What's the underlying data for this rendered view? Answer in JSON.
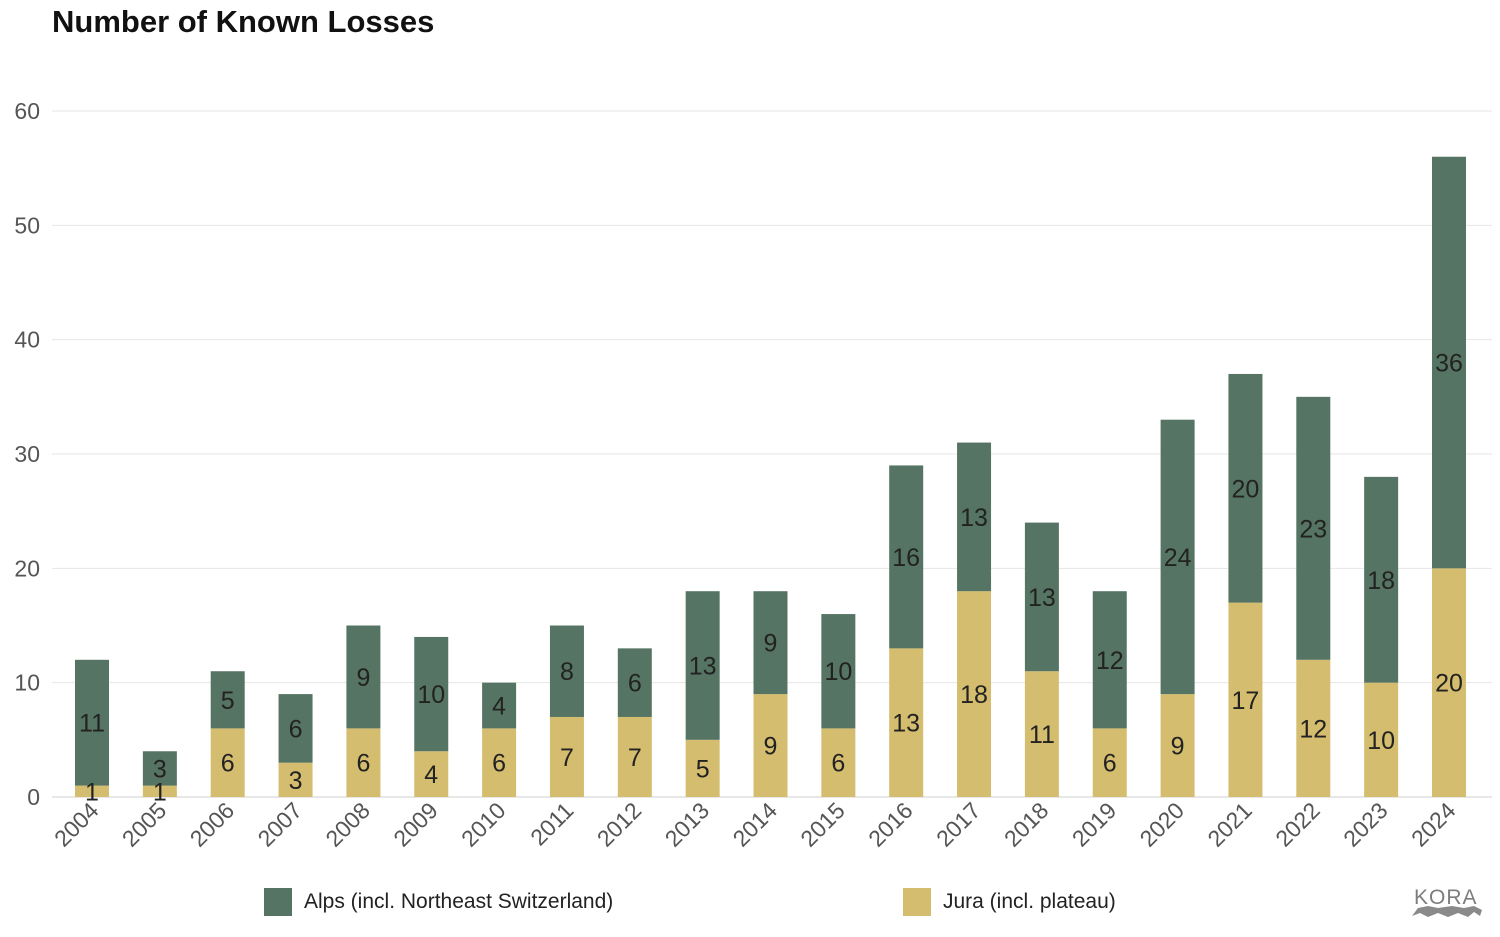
{
  "chart_data": {
    "type": "bar",
    "stacked": true,
    "title": "Number of Known Losses",
    "xlabel": "",
    "ylabel": "",
    "ylim": [
      0,
      60
    ],
    "yticks": [
      0,
      10,
      20,
      30,
      40,
      50,
      60
    ],
    "grid": true,
    "legend_position": "bottom",
    "categories": [
      "2004",
      "2005",
      "2006",
      "2007",
      "2008",
      "2009",
      "2010",
      "2011",
      "2012",
      "2013",
      "2014",
      "2015",
      "2016",
      "2017",
      "2018",
      "2019",
      "2020",
      "2021",
      "2022",
      "2023",
      "2024"
    ],
    "series": [
      {
        "name": "Jura (incl. plateau)",
        "color": "#d4bd6e",
        "values": [
          1,
          1,
          6,
          3,
          6,
          4,
          6,
          7,
          7,
          5,
          9,
          6,
          13,
          18,
          11,
          6,
          9,
          17,
          12,
          10,
          20
        ]
      },
      {
        "name": "Alps (incl. Northeast Switzerland)",
        "color": "#567463",
        "values": [
          11,
          3,
          5,
          6,
          9,
          10,
          4,
          8,
          6,
          13,
          9,
          10,
          16,
          13,
          13,
          12,
          24,
          20,
          23,
          18,
          36
        ]
      }
    ],
    "legend": [
      {
        "name": "Alps (incl. Northeast Switzerland)",
        "color": "#567463"
      },
      {
        "name": "Jura (incl. plateau)",
        "color": "#d4bd6e"
      }
    ]
  },
  "logo": {
    "text": "KORA",
    "icon": "lynx-silhouette-icon"
  }
}
